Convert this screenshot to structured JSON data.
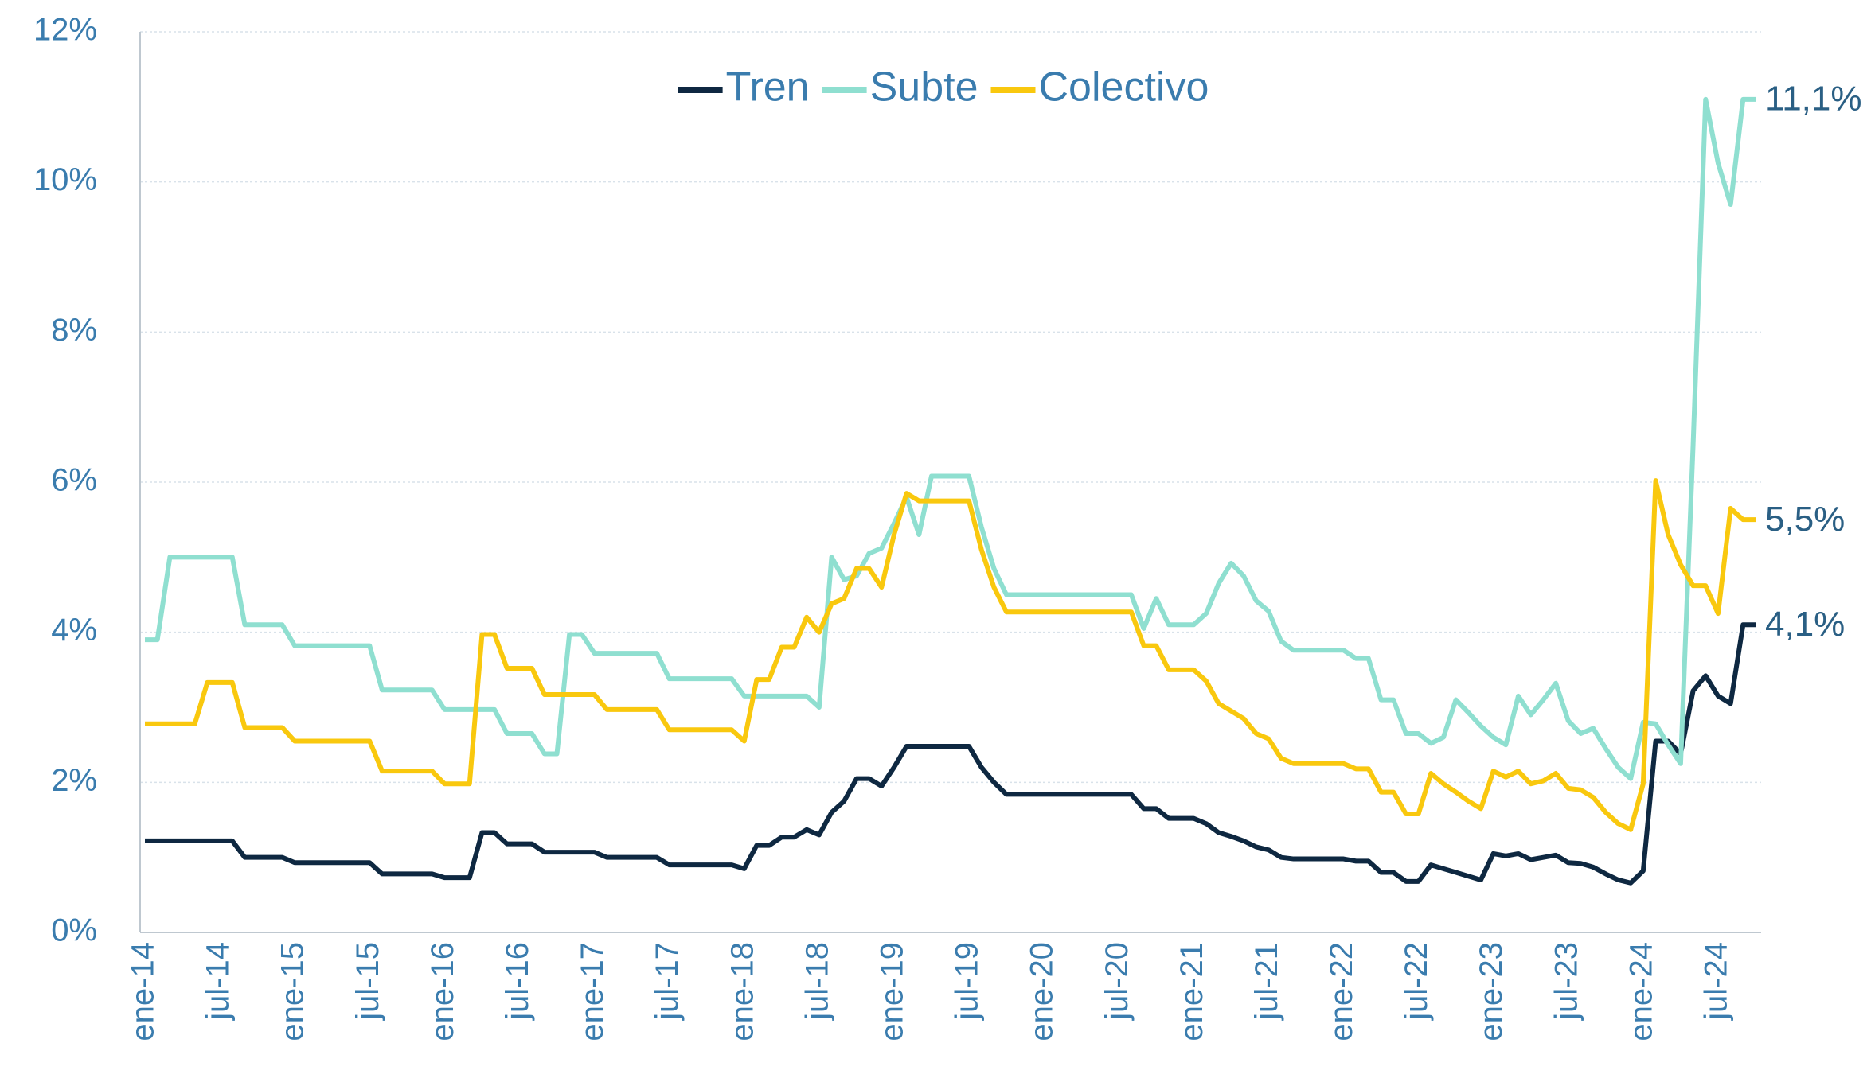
{
  "chart_data": {
    "type": "line",
    "categories": [
      "ene-14",
      null,
      null,
      null,
      null,
      null,
      "jul-14",
      null,
      null,
      null,
      null,
      null,
      "ene-15",
      null,
      null,
      null,
      null,
      null,
      "jul-15",
      null,
      null,
      null,
      null,
      null,
      "ene-16",
      null,
      null,
      null,
      null,
      null,
      "jul-16",
      null,
      null,
      null,
      null,
      null,
      "ene-17",
      null,
      null,
      null,
      null,
      null,
      "jul-17",
      null,
      null,
      null,
      null,
      null,
      "ene-18",
      null,
      null,
      null,
      null,
      null,
      "jul-18",
      null,
      null,
      null,
      null,
      null,
      "ene-19",
      null,
      null,
      null,
      null,
      null,
      "jul-19",
      null,
      null,
      null,
      null,
      null,
      "ene-20",
      null,
      null,
      null,
      null,
      null,
      "jul-20",
      null,
      null,
      null,
      null,
      null,
      "ene-21",
      null,
      null,
      null,
      null,
      null,
      "jul-21",
      null,
      null,
      null,
      null,
      null,
      "ene-22",
      null,
      null,
      null,
      null,
      null,
      "jul-22",
      null,
      null,
      null,
      null,
      null,
      "ene-23",
      null,
      null,
      null,
      null,
      null,
      "jul-23",
      null,
      null,
      null,
      null,
      null,
      "ene-24",
      null,
      null,
      null,
      null,
      null,
      "jul-24",
      null,
      null,
      null
    ],
    "series": [
      {
        "name": "Tren",
        "color": "#0e2841",
        "values": [
          1.22,
          1.22,
          1.22,
          1.22,
          1.22,
          1.22,
          1.22,
          1.22,
          1.0,
          1.0,
          1.0,
          1.0,
          0.93,
          0.93,
          0.93,
          0.93,
          0.93,
          0.93,
          0.93,
          0.78,
          0.78,
          0.78,
          0.78,
          0.78,
          0.73,
          0.73,
          0.73,
          1.33,
          1.33,
          1.18,
          1.18,
          1.18,
          1.07,
          1.07,
          1.07,
          1.07,
          1.07,
          1.0,
          1.0,
          1.0,
          1.0,
          1.0,
          0.9,
          0.9,
          0.9,
          0.9,
          0.9,
          0.9,
          0.85,
          1.16,
          1.16,
          1.27,
          1.27,
          1.37,
          1.3,
          1.6,
          1.75,
          2.05,
          2.05,
          1.95,
          2.2,
          2.48,
          2.48,
          2.48,
          2.48,
          2.48,
          2.48,
          2.2,
          2.0,
          1.84,
          1.84,
          1.84,
          1.84,
          1.84,
          1.84,
          1.84,
          1.84,
          1.84,
          1.84,
          1.84,
          1.65,
          1.65,
          1.52,
          1.52,
          1.52,
          1.45,
          1.33,
          1.28,
          1.22,
          1.14,
          1.1,
          1.0,
          0.98,
          0.98,
          0.98,
          0.98,
          0.98,
          0.95,
          0.95,
          0.8,
          0.8,
          0.68,
          0.68,
          0.9,
          0.85,
          0.8,
          0.75,
          0.7,
          1.05,
          1.02,
          1.05,
          0.97,
          1.0,
          1.03,
          0.93,
          0.92,
          0.87,
          0.78,
          0.7,
          0.66,
          0.82,
          2.55,
          2.55,
          2.38,
          3.22,
          3.42,
          3.15,
          3.05,
          4.1,
          4.1
        ],
        "value_labels": [
          null,
          null,
          null,
          null,
          null,
          null,
          null,
          null,
          null,
          null,
          null,
          null,
          null,
          null,
          null,
          null,
          null,
          null,
          null,
          null,
          null,
          null,
          null,
          null,
          null,
          null,
          null,
          null,
          null,
          null,
          null,
          null,
          null,
          null,
          null,
          null,
          null,
          null,
          null,
          null,
          null,
          null,
          null,
          null,
          null,
          null,
          null,
          null,
          null,
          null,
          null,
          null,
          null,
          null,
          null,
          null,
          null,
          null,
          null,
          null,
          null,
          null,
          null,
          null,
          null,
          null,
          null,
          null,
          null,
          null,
          null,
          null,
          null,
          null,
          null,
          null,
          null,
          null,
          null,
          null,
          null,
          null,
          null,
          null,
          null,
          null,
          null,
          null,
          null,
          null,
          null,
          null,
          null,
          null,
          null,
          null,
          null,
          null,
          null,
          null,
          null,
          null,
          null,
          null,
          null,
          null,
          null,
          null,
          null,
          null,
          null,
          null,
          null,
          null,
          null,
          null,
          null,
          null,
          null,
          null,
          null,
          null,
          null,
          null,
          null,
          null,
          null,
          null,
          null,
          "4,1%"
        ]
      },
      {
        "name": "Subte",
        "color": "#8fdfd0",
        "values": [
          3.9,
          3.9,
          5.0,
          5.0,
          5.0,
          5.0,
          5.0,
          5.0,
          4.1,
          4.1,
          4.1,
          4.1,
          3.82,
          3.82,
          3.82,
          3.82,
          3.82,
          3.82,
          3.82,
          3.23,
          3.23,
          3.23,
          3.23,
          3.23,
          2.97,
          2.97,
          2.97,
          2.97,
          2.97,
          2.65,
          2.65,
          2.65,
          2.38,
          2.38,
          3.97,
          3.97,
          3.72,
          3.72,
          3.72,
          3.72,
          3.72,
          3.72,
          3.38,
          3.38,
          3.38,
          3.38,
          3.38,
          3.38,
          3.15,
          3.15,
          3.15,
          3.15,
          3.15,
          3.15,
          3.0,
          5.0,
          4.7,
          4.75,
          5.05,
          5.12,
          5.45,
          5.8,
          5.3,
          6.08,
          6.08,
          6.08,
          6.08,
          5.4,
          4.85,
          4.5,
          4.5,
          4.5,
          4.5,
          4.5,
          4.5,
          4.5,
          4.5,
          4.5,
          4.5,
          4.5,
          4.05,
          4.45,
          4.1,
          4.1,
          4.1,
          4.25,
          4.65,
          4.92,
          4.75,
          4.42,
          4.28,
          3.88,
          3.76,
          3.76,
          3.76,
          3.76,
          3.76,
          3.65,
          3.65,
          3.1,
          3.1,
          2.65,
          2.65,
          2.52,
          2.6,
          3.1,
          2.93,
          2.75,
          2.6,
          2.5,
          3.15,
          2.9,
          3.1,
          3.32,
          2.82,
          2.65,
          2.72,
          2.45,
          2.2,
          2.05,
          2.8,
          2.78,
          2.5,
          2.25,
          6.5,
          11.1,
          10.25,
          9.7,
          11.1,
          11.1
        ],
        "value_labels": [
          null,
          null,
          null,
          null,
          null,
          null,
          null,
          null,
          null,
          null,
          null,
          null,
          null,
          null,
          null,
          null,
          null,
          null,
          null,
          null,
          null,
          null,
          null,
          null,
          null,
          null,
          null,
          null,
          null,
          null,
          null,
          null,
          null,
          null,
          null,
          null,
          null,
          null,
          null,
          null,
          null,
          null,
          null,
          null,
          null,
          null,
          null,
          null,
          null,
          null,
          null,
          null,
          null,
          null,
          null,
          null,
          null,
          null,
          null,
          null,
          null,
          null,
          null,
          null,
          null,
          null,
          null,
          null,
          null,
          null,
          null,
          null,
          null,
          null,
          null,
          null,
          null,
          null,
          null,
          null,
          null,
          null,
          null,
          null,
          null,
          null,
          null,
          null,
          null,
          null,
          null,
          null,
          null,
          null,
          null,
          null,
          null,
          null,
          null,
          null,
          null,
          null,
          null,
          null,
          null,
          null,
          null,
          null,
          null,
          null,
          null,
          null,
          null,
          null,
          null,
          null,
          null,
          null,
          null,
          null,
          null,
          null,
          null,
          null,
          null,
          null,
          null,
          null,
          null,
          "11,1%"
        ]
      },
      {
        "name": "Colectivo",
        "color": "#f9c80e",
        "values": [
          2.78,
          2.78,
          2.78,
          2.78,
          2.78,
          3.33,
          3.33,
          3.33,
          2.73,
          2.73,
          2.73,
          2.73,
          2.55,
          2.55,
          2.55,
          2.55,
          2.55,
          2.55,
          2.55,
          2.15,
          2.15,
          2.15,
          2.15,
          2.15,
          1.98,
          1.98,
          1.98,
          3.97,
          3.97,
          3.52,
          3.52,
          3.52,
          3.17,
          3.17,
          3.17,
          3.17,
          3.17,
          2.97,
          2.97,
          2.97,
          2.97,
          2.97,
          2.7,
          2.7,
          2.7,
          2.7,
          2.7,
          2.7,
          2.55,
          3.37,
          3.37,
          3.8,
          3.8,
          4.2,
          4.0,
          4.38,
          4.45,
          4.85,
          4.85,
          4.6,
          5.3,
          5.85,
          5.75,
          5.75,
          5.75,
          5.75,
          5.75,
          5.1,
          4.6,
          4.27,
          4.27,
          4.27,
          4.27,
          4.27,
          4.27,
          4.27,
          4.27,
          4.27,
          4.27,
          4.27,
          3.82,
          3.82,
          3.5,
          3.5,
          3.5,
          3.35,
          3.05,
          2.95,
          2.85,
          2.65,
          2.58,
          2.32,
          2.25,
          2.25,
          2.25,
          2.25,
          2.25,
          2.18,
          2.18,
          1.87,
          1.87,
          1.58,
          1.58,
          2.12,
          1.98,
          1.87,
          1.75,
          1.65,
          2.15,
          2.07,
          2.15,
          1.98,
          2.02,
          2.12,
          1.92,
          1.9,
          1.8,
          1.6,
          1.45,
          1.37,
          1.98,
          6.02,
          5.3,
          4.9,
          4.62,
          4.62,
          4.25,
          5.65,
          5.5,
          5.5
        ],
        "value_labels": [
          null,
          null,
          null,
          null,
          null,
          null,
          null,
          null,
          null,
          null,
          null,
          null,
          null,
          null,
          null,
          null,
          null,
          null,
          null,
          null,
          null,
          null,
          null,
          null,
          null,
          null,
          null,
          null,
          null,
          null,
          null,
          null,
          null,
          null,
          null,
          null,
          null,
          null,
          null,
          null,
          null,
          null,
          null,
          null,
          null,
          null,
          null,
          null,
          null,
          null,
          null,
          null,
          null,
          null,
          null,
          null,
          null,
          null,
          null,
          null,
          null,
          null,
          null,
          null,
          null,
          null,
          null,
          null,
          null,
          null,
          null,
          null,
          null,
          null,
          null,
          null,
          null,
          null,
          null,
          null,
          null,
          null,
          null,
          null,
          null,
          null,
          null,
          null,
          null,
          null,
          null,
          null,
          null,
          null,
          null,
          null,
          null,
          null,
          null,
          null,
          null,
          null,
          null,
          null,
          null,
          null,
          null,
          null,
          null,
          null,
          null,
          null,
          null,
          null,
          null,
          null,
          null,
          null,
          null,
          null,
          null,
          null,
          null,
          null,
          null,
          null,
          null,
          null,
          null,
          "5,5%"
        ]
      }
    ],
    "ylim": [
      0,
      12
    ],
    "yticks": [
      {
        "value": 0,
        "label": "0%"
      },
      {
        "value": 2,
        "label": "2%"
      },
      {
        "value": 4,
        "label": "4%"
      },
      {
        "value": 6,
        "label": "6%"
      },
      {
        "value": 8,
        "label": "8%"
      },
      {
        "value": 10,
        "label": "10%"
      },
      {
        "value": 12,
        "label": "12%"
      }
    ],
    "grid": true,
    "legend": "top"
  }
}
